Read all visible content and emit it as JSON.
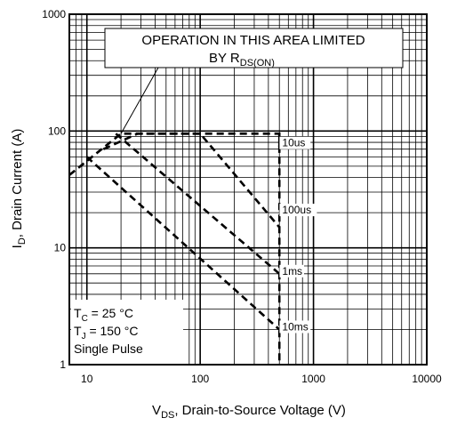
{
  "chart_data": {
    "type": "line",
    "xlabel": {
      "main": "V",
      "sub": "DS",
      "rest": ", Drain-to-Source Voltage (V)"
    },
    "ylabel": {
      "main": "I",
      "sub": "D",
      "rest": ", Drain Current (A)"
    },
    "xscale": "log",
    "yscale": "log",
    "xlim": [
      7,
      10000
    ],
    "ylim": [
      1,
      1000
    ],
    "x_ticks": [
      10,
      100,
      1000,
      10000
    ],
    "x_tick_labels": [
      "10",
      "100",
      "1000",
      "10000"
    ],
    "y_ticks": [
      1,
      10,
      100,
      1000
    ],
    "y_tick_labels": [
      "1",
      "10",
      "100",
      "1000"
    ],
    "grid": true,
    "annotation": {
      "line1": "OPERATION IN THIS AREA LIMITED",
      "line2_main": "BY R",
      "line2_sub": "DS(ON)"
    },
    "conditions": [
      {
        "main": "T",
        "sub": "C",
        "rest": " = 25 °C"
      },
      {
        "main": "T",
        "sub": "J",
        "rest": " = 150 °C"
      },
      {
        "main": "Single Pulse",
        "sub": "",
        "rest": ""
      }
    ],
    "series": [
      {
        "name": "10us",
        "label_at": [
          520,
          75
        ],
        "points": [
          [
            7,
            42
          ],
          [
            20,
            95
          ],
          [
            500,
            95
          ],
          [
            500,
            65
          ]
        ]
      },
      {
        "name": "100us",
        "label_at": [
          520,
          20
        ],
        "points": [
          [
            14,
            70
          ],
          [
            28,
            95
          ],
          [
            100,
            95
          ],
          [
            500,
            15
          ]
        ]
      },
      {
        "name": "1ms",
        "label_at": [
          520,
          6
        ],
        "points": [
          [
            18,
            95
          ],
          [
            500,
            6
          ]
        ]
      },
      {
        "name": "10ms",
        "label_at": [
          520,
          2
        ],
        "points": [
          [
            10,
            60
          ],
          [
            500,
            2
          ]
        ]
      }
    ],
    "voltage_limit": {
      "x": 500,
      "from": 1,
      "to": 95
    }
  }
}
